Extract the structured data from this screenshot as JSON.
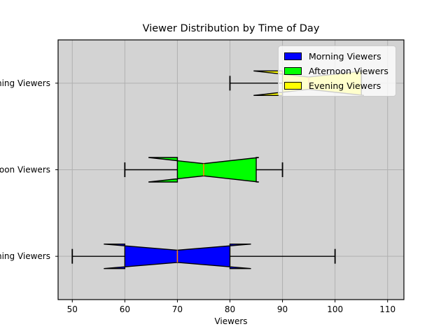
{
  "chart_data": {
    "type": "boxplot",
    "orientation": "horizontal",
    "notched": true,
    "title": "Viewer Distribution by Time of Day",
    "xlabel": "Viewers",
    "ylabel": "",
    "x_ticks": [
      50,
      60,
      70,
      80,
      90,
      100,
      110
    ],
    "xlim": [
      47.3,
      113.1
    ],
    "grid": true,
    "plot_bg_color": "#d3d3d3",
    "grid_color": "#b0b0b0",
    "median_color": "#ff7f0e",
    "edge_color": "#000000",
    "categories": [
      "Morning Viewers",
      "Afternoon Viewers",
      "Evening Viewers"
    ],
    "series": [
      {
        "name": "Morning Viewers",
        "color": "#0000ff",
        "position": 1,
        "stats": {
          "whislo": 50,
          "q1": 60,
          "med": 70,
          "q3": 80,
          "whishi": 100,
          "cilo": 56,
          "cihi": 84
        }
      },
      {
        "name": "Afternoon Viewers",
        "color": "#00ff00",
        "position": 2,
        "stats": {
          "whislo": 60,
          "q1": 70,
          "med": 75,
          "q3": 85,
          "whishi": 90,
          "cilo": 64.5,
          "cihi": 85.5
        }
      },
      {
        "name": "Evening Viewers",
        "color": "#ffff00",
        "position": 3,
        "stats": {
          "whislo": 80,
          "q1": 90,
          "med": 95,
          "q3": 105,
          "whishi": 105,
          "cilo": 84.5,
          "cihi": 105.5
        }
      }
    ],
    "legend": {
      "position": "upper right",
      "entries": [
        {
          "label": "Morning Viewers",
          "color": "#0000ff"
        },
        {
          "label": "Afternoon Viewers",
          "color": "#00ff00"
        },
        {
          "label": "Evening Viewers",
          "color": "#ffff00"
        }
      ]
    }
  }
}
